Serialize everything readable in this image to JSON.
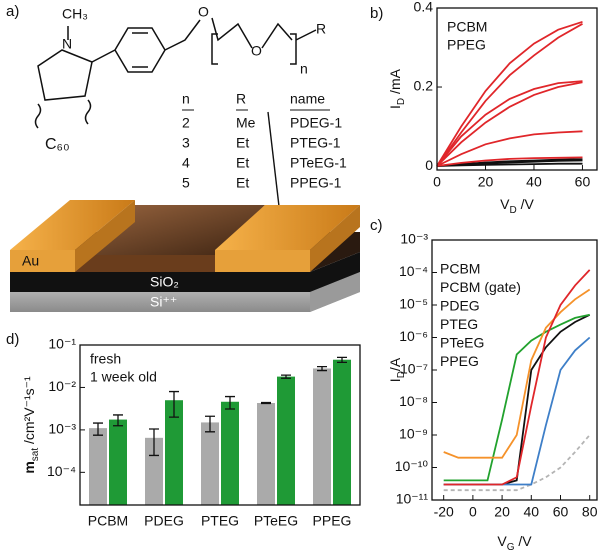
{
  "panel_a": {
    "label": "a)",
    "structure": {
      "n_atom": "N",
      "ch3": "CH₃",
      "o1": "O",
      "o2": "O",
      "n": "n",
      "r": "R",
      "c60": "C₆₀"
    },
    "table": {
      "header": [
        "n",
        "R",
        "name"
      ],
      "rows": [
        [
          "2",
          "Me",
          "PDEG-1"
        ],
        [
          "3",
          "Et",
          "PTEG-1"
        ],
        [
          "4",
          "Et",
          "PTeEG-1"
        ],
        [
          "5",
          "Et",
          "PPEG-1"
        ]
      ]
    },
    "device": {
      "au": "Au",
      "sio2": "SiO₂",
      "si": "Si⁺⁺"
    }
  },
  "chart_data": [
    {
      "type": "line",
      "label": "b)",
      "xlabel": {
        "main": "V",
        "sub": "D",
        "unit": " /V"
      },
      "ylabel": {
        "main": "I",
        "sub": "D",
        "unit": " /mA"
      },
      "x": [
        0,
        10,
        20,
        30,
        40,
        50,
        60
      ],
      "series": [
        {
          "name": "PCBM",
          "color": "#111111",
          "curves": [
            [
              0,
              0.005,
              0.009,
              0.012,
              0.014,
              0.016,
              0.017
            ],
            [
              0,
              0.003,
              0.006,
              0.009,
              0.011,
              0.013,
              0.014
            ],
            [
              0,
              0.002,
              0.003,
              0.004,
              0.005,
              0.006,
              0.006
            ]
          ]
        },
        {
          "name": "PPEG",
          "color": "#e0262a",
          "curves": [
            [
              0,
              0.1,
              0.19,
              0.26,
              0.31,
              0.345,
              0.365
            ],
            [
              0,
              0.085,
              0.165,
              0.23,
              0.28,
              0.325,
              0.36
            ],
            [
              0,
              0.075,
              0.13,
              0.17,
              0.195,
              0.21,
              0.215
            ],
            [
              0,
              0.06,
              0.11,
              0.15,
              0.18,
              0.2,
              0.212
            ],
            [
              0,
              0.03,
              0.055,
              0.07,
              0.08,
              0.085,
              0.088
            ],
            [
              0,
              0.008,
              0.014,
              0.018,
              0.02,
              0.021,
              0.022
            ]
          ]
        }
      ],
      "xlim": [
        0,
        66
      ],
      "ylim": [
        -0.01,
        0.4
      ],
      "xticks": [
        0,
        20,
        40,
        60
      ],
      "yticks": [
        0,
        0.2,
        0.4
      ]
    },
    {
      "type": "line",
      "label": "c)",
      "log_y": true,
      "xlabel": {
        "main": "V",
        "sub": "G",
        "unit": " /V"
      },
      "ylabel": {
        "main": "I",
        "sub": "D",
        "unit": "/A"
      },
      "x": [
        -20,
        -10,
        0,
        10,
        20,
        30,
        40,
        50,
        60,
        70,
        80
      ],
      "series": [
        {
          "name": "PCBM",
          "color": "#111111",
          "values": [
            3e-11,
            3e-11,
            3e-11,
            3e-11,
            3e-11,
            4e-11,
            1e-07,
            5e-07,
            1.5e-06,
            3e-06,
            5e-06
          ]
        },
        {
          "name": "PCBM (gate)",
          "color": "#b4b4b4",
          "dashed": true,
          "values": [
            2e-11,
            2e-11,
            2e-11,
            2e-11,
            2e-11,
            2e-11,
            3e-11,
            5e-11,
            1e-10,
            3e-10,
            1e-09
          ]
        },
        {
          "name": "PDEG",
          "color": "#3e7fc8",
          "values": [
            3e-11,
            3e-11,
            3e-11,
            3e-11,
            3e-11,
            3e-11,
            3e-11,
            2e-09,
            1e-07,
            4e-07,
            1e-06
          ]
        },
        {
          "name": "PTEG",
          "color": "#22a22e",
          "values": [
            4e-11,
            4e-11,
            4e-11,
            4e-11,
            3e-09,
            3e-07,
            8e-07,
            1.5e-06,
            2.5e-06,
            4e-06,
            5e-06
          ]
        },
        {
          "name": "PTeEG",
          "color": "#f5922a",
          "values": [
            3e-10,
            2e-10,
            2e-10,
            2e-10,
            2e-10,
            1e-09,
            2e-07,
            2e-06,
            6e-06,
            1.5e-05,
            3e-05
          ]
        },
        {
          "name": "PPEG",
          "color": "#e0262a",
          "values": [
            3e-11,
            3e-11,
            3e-11,
            3e-11,
            3e-11,
            5e-11,
            8e-09,
            1e-06,
            1e-05,
            4e-05,
            0.00012
          ]
        }
      ],
      "xlim": [
        -28,
        85
      ],
      "ylim": [
        1e-11,
        0.001
      ],
      "xticks": [
        -20,
        0,
        20,
        40,
        60,
        80
      ],
      "yticks": [
        {
          "value": 1e-11,
          "label": "10⁻¹¹"
        },
        {
          "value": 1e-10,
          "label": "10⁻¹⁰"
        },
        {
          "value": 1e-09,
          "label": "10⁻⁹"
        },
        {
          "value": 1e-08,
          "label": "10⁻⁸"
        },
        {
          "value": 1e-07,
          "label": "10⁻⁷"
        },
        {
          "value": 1e-06,
          "label": "10⁻⁶"
        },
        {
          "value": 1e-05,
          "label": "10⁻⁵"
        },
        {
          "value": 0.0001,
          "label": "10⁻⁴"
        },
        {
          "value": 0.001,
          "label": "10⁻³"
        }
      ]
    },
    {
      "type": "bar",
      "label": "d)",
      "log_y": true,
      "ylabel": {
        "main": "m",
        "sub": "sat",
        "unit": " /cm²V⁻¹s⁻¹"
      },
      "categories": [
        "PCBM",
        "PDEG",
        "PTEG",
        "PTeEG",
        "PPEG"
      ],
      "series": [
        {
          "name": "fresh",
          "color": "#aaaaaa",
          "text_color": "#444444",
          "values": [
            0.0011,
            0.00065,
            0.0015,
            0.0043,
            0.028
          ],
          "errors": [
            0.00035,
            0.0004,
            0.0006,
            0.0001,
            0.003
          ]
        },
        {
          "name": "1 week old",
          "color": "#1f9a36",
          "values": [
            0.00175,
            0.005,
            0.0046,
            0.018,
            0.045
          ],
          "errors": [
            0.0005,
            0.003,
            0.0015,
            0.0015,
            0.006
          ]
        }
      ],
      "ylim": [
        1.7e-05,
        0.1
      ],
      "yticks": [
        {
          "value": 0.0001,
          "label": "10⁻⁴"
        },
        {
          "value": 0.001,
          "label": "10⁻³"
        },
        {
          "value": 0.01,
          "label": "10⁻²"
        },
        {
          "value": 0.1,
          "label": "10⁻¹"
        }
      ]
    }
  ]
}
